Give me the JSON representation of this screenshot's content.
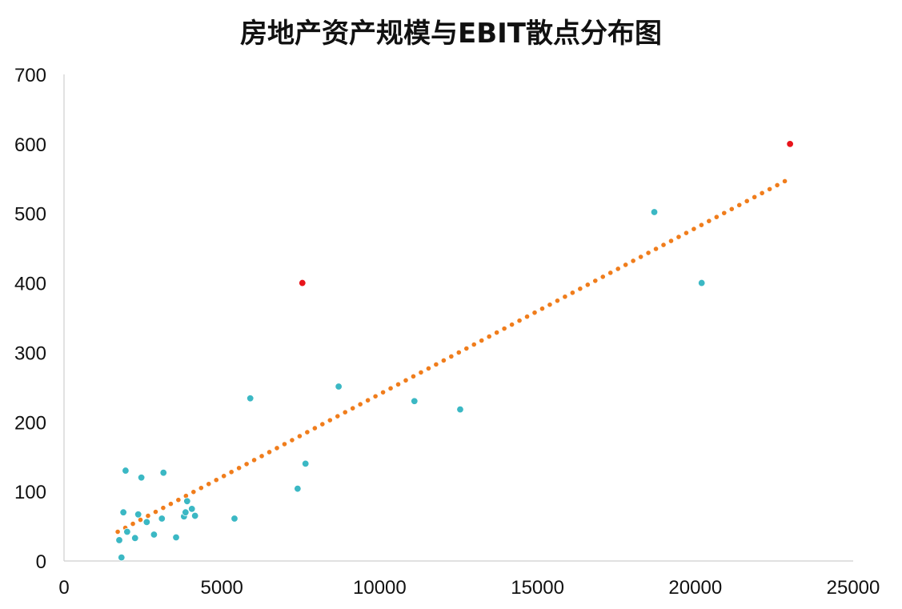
{
  "title": "房地产资产规模与EBIT散点分布图",
  "chart_data": {
    "type": "scatter",
    "title": "房地产资产规模与EBIT散点分布图",
    "xlabel": "",
    "ylabel": "",
    "xlim": [
      0,
      25000
    ],
    "ylim": [
      0,
      700
    ],
    "x_ticks": [
      "0",
      "5000",
      "10000",
      "15000",
      "20000",
      "25000"
    ],
    "y_ticks": [
      "0",
      "100",
      "200",
      "300",
      "400",
      "500",
      "600",
      "700"
    ],
    "grid": false,
    "legend": "none",
    "series": [
      {
        "color": "#3bb8c4",
        "points": [
          [
            1750,
            30
          ],
          [
            1820,
            5
          ],
          [
            1880,
            70
          ],
          [
            1950,
            130
          ],
          [
            2000,
            42
          ],
          [
            2250,
            33
          ],
          [
            2350,
            67
          ],
          [
            2450,
            120
          ],
          [
            2620,
            56
          ],
          [
            2850,
            38
          ],
          [
            3100,
            61
          ],
          [
            3150,
            127
          ],
          [
            3550,
            34
          ],
          [
            3800,
            64
          ],
          [
            3850,
            70
          ],
          [
            3900,
            86
          ],
          [
            4050,
            75
          ],
          [
            4150,
            65
          ],
          [
            5400,
            61
          ],
          [
            5900,
            234
          ],
          [
            7400,
            104
          ],
          [
            7650,
            140
          ],
          [
            8700,
            251
          ],
          [
            11100,
            230
          ],
          [
            12550,
            218
          ],
          [
            18700,
            502
          ],
          [
            20200,
            400
          ]
        ]
      },
      {
        "color": "#e8141b",
        "points": [
          [
            7550,
            400
          ],
          [
            23000,
            600
          ]
        ]
      }
    ],
    "trendline": {
      "type": "linear",
      "style": "dotted",
      "color": "#f07d1c",
      "x_range": [
        1700,
        22900
      ],
      "y_range": [
        42,
        548
      ]
    }
  }
}
